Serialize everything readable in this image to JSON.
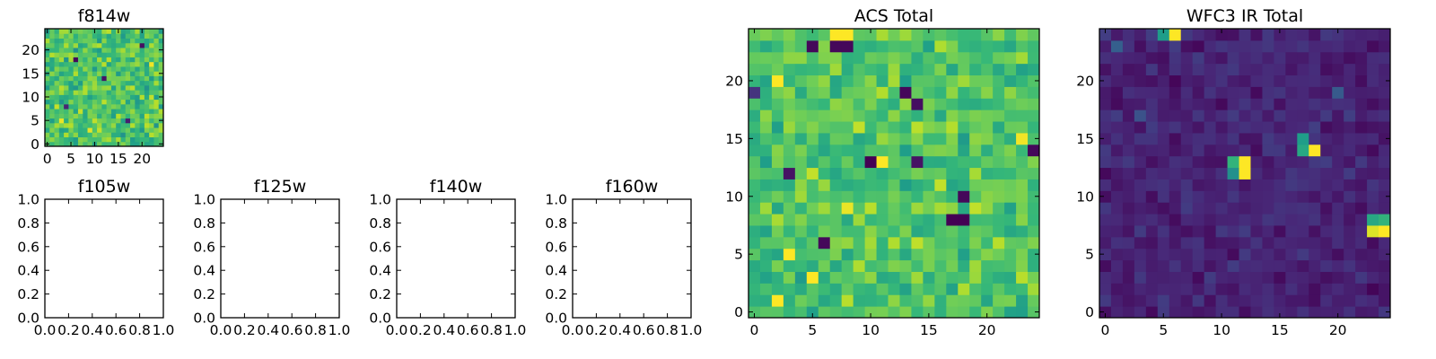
{
  "chart_data": [
    {
      "type": "heatmap",
      "id": "f814w",
      "title": "f814w",
      "shape": [
        25,
        25
      ],
      "xticks": [
        0,
        5,
        10,
        15,
        20
      ],
      "yticks": [
        0,
        5,
        10,
        15,
        20
      ],
      "xlim": [
        -0.5,
        24.5
      ],
      "ylim": [
        -0.5,
        24.5
      ],
      "colormap": "viridis",
      "seed": 17,
      "base": 0.72,
      "noise": 0.22,
      "hotspots": [
        {
          "x": 6,
          "y": 18,
          "v": 0.02
        },
        {
          "x": 12,
          "y": 14,
          "v": 0.05
        },
        {
          "x": 4,
          "y": 8,
          "v": 0.1
        },
        {
          "x": 17,
          "y": 5,
          "v": 0.08
        },
        {
          "x": 20,
          "y": 21,
          "v": 0.04
        },
        {
          "x": 3,
          "y": 5,
          "v": 0.97
        },
        {
          "x": 22,
          "y": 17,
          "v": 0.98
        },
        {
          "x": 9,
          "y": 3,
          "v": 0.96
        }
      ]
    },
    {
      "type": "axes",
      "id": "f105w",
      "title": "f105w",
      "xticks": [
        "0.0",
        "0.2",
        "0.4",
        "0.6",
        "0.8",
        "1.0"
      ],
      "yticks": [
        "0.0",
        "0.2",
        "0.4",
        "0.6",
        "0.8",
        "1.0"
      ],
      "xlim": [
        0,
        1
      ],
      "ylim": [
        0,
        1
      ]
    },
    {
      "type": "axes",
      "id": "f125w",
      "title": "f125w",
      "xticks": [
        "0.0",
        "0.2",
        "0.4",
        "0.6",
        "0.8",
        "1.0"
      ],
      "yticks": [
        "0.0",
        "0.2",
        "0.4",
        "0.6",
        "0.8",
        "1.0"
      ],
      "xlim": [
        0,
        1
      ],
      "ylim": [
        0,
        1
      ]
    },
    {
      "type": "axes",
      "id": "f140w",
      "title": "f140w",
      "xticks": [
        "0.0",
        "0.2",
        "0.4",
        "0.6",
        "0.8",
        "1.0"
      ],
      "yticks": [
        "0.0",
        "0.2",
        "0.4",
        "0.6",
        "0.8",
        "1.0"
      ],
      "xlim": [
        0,
        1
      ],
      "ylim": [
        0,
        1
      ]
    },
    {
      "type": "axes",
      "id": "f160w",
      "title": "f160w",
      "xticks": [
        "0.0",
        "0.2",
        "0.4",
        "0.6",
        "0.8",
        "1.0"
      ],
      "yticks": [
        "0.0",
        "0.2",
        "0.4",
        "0.6",
        "0.8",
        "1.0"
      ],
      "xlim": [
        0,
        1
      ],
      "ylim": [
        0,
        1
      ]
    },
    {
      "type": "heatmap",
      "id": "acs_total",
      "title": "ACS Total",
      "shape": [
        25,
        25
      ],
      "xticks": [
        0,
        5,
        10,
        15,
        20
      ],
      "yticks": [
        0,
        5,
        10,
        15,
        20
      ],
      "xlim": [
        -0.5,
        24.5
      ],
      "ylim": [
        -0.5,
        24.5
      ],
      "colormap": "viridis",
      "seed": 5,
      "base": 0.72,
      "noise": 0.2,
      "hotspots": [
        {
          "x": 5,
          "y": 23,
          "v": 0.02
        },
        {
          "x": 7,
          "y": 23,
          "v": 0.02
        },
        {
          "x": 8,
          "y": 23,
          "v": 0.02
        },
        {
          "x": 13,
          "y": 19,
          "v": 0.02
        },
        {
          "x": 14,
          "y": 18,
          "v": 0.04
        },
        {
          "x": 10,
          "y": 13,
          "v": 0.0
        },
        {
          "x": 3,
          "y": 12,
          "v": 0.05
        },
        {
          "x": 14,
          "y": 13,
          "v": 0.05
        },
        {
          "x": 18,
          "y": 10,
          "v": 0.02
        },
        {
          "x": 17,
          "y": 8,
          "v": 0.0
        },
        {
          "x": 18,
          "y": 8,
          "v": 0.0
        },
        {
          "x": 6,
          "y": 6,
          "v": 0.02
        },
        {
          "x": 24,
          "y": 14,
          "v": 0.02
        },
        {
          "x": 0,
          "y": 19,
          "v": 0.15
        },
        {
          "x": 7,
          "y": 24,
          "v": 1.0
        },
        {
          "x": 8,
          "y": 24,
          "v": 1.0
        },
        {
          "x": 2,
          "y": 20,
          "v": 1.0
        },
        {
          "x": 11,
          "y": 13,
          "v": 1.0
        },
        {
          "x": 3,
          "y": 5,
          "v": 1.0
        },
        {
          "x": 5,
          "y": 3,
          "v": 1.0
        },
        {
          "x": 2,
          "y": 1,
          "v": 1.0
        },
        {
          "x": 23,
          "y": 15,
          "v": 0.98
        },
        {
          "x": 8,
          "y": 9,
          "v": 0.97
        }
      ]
    },
    {
      "type": "heatmap",
      "id": "wfc3_ir_total",
      "title": "WFC3 IR Total",
      "shape": [
        25,
        25
      ],
      "xticks": [
        0,
        5,
        10,
        15,
        20
      ],
      "yticks": [
        0,
        5,
        10,
        15,
        20
      ],
      "xlim": [
        -0.5,
        24.5
      ],
      "ylim": [
        -0.5,
        24.5
      ],
      "colormap": "viridis",
      "seed": 9,
      "base": 0.1,
      "noise": 0.09,
      "hotspots": [
        {
          "x": 12,
          "y": 13,
          "v": 1.0
        },
        {
          "x": 12,
          "y": 12,
          "v": 1.0
        },
        {
          "x": 11,
          "y": 13,
          "v": 0.65
        },
        {
          "x": 11,
          "y": 12,
          "v": 0.5
        },
        {
          "x": 18,
          "y": 14,
          "v": 1.0
        },
        {
          "x": 17,
          "y": 14,
          "v": 0.6
        },
        {
          "x": 17,
          "y": 15,
          "v": 0.55
        },
        {
          "x": 24,
          "y": 7,
          "v": 1.0
        },
        {
          "x": 24,
          "y": 8,
          "v": 0.65
        },
        {
          "x": 23,
          "y": 7,
          "v": 0.95
        },
        {
          "x": 23,
          "y": 8,
          "v": 0.6
        },
        {
          "x": 6,
          "y": 24,
          "v": 1.0
        },
        {
          "x": 5,
          "y": 24,
          "v": 0.55
        },
        {
          "x": 1,
          "y": 23,
          "v": 0.3
        },
        {
          "x": 20,
          "y": 19,
          "v": 0.28
        },
        {
          "x": 3,
          "y": 17,
          "v": 0.25
        }
      ]
    }
  ]
}
